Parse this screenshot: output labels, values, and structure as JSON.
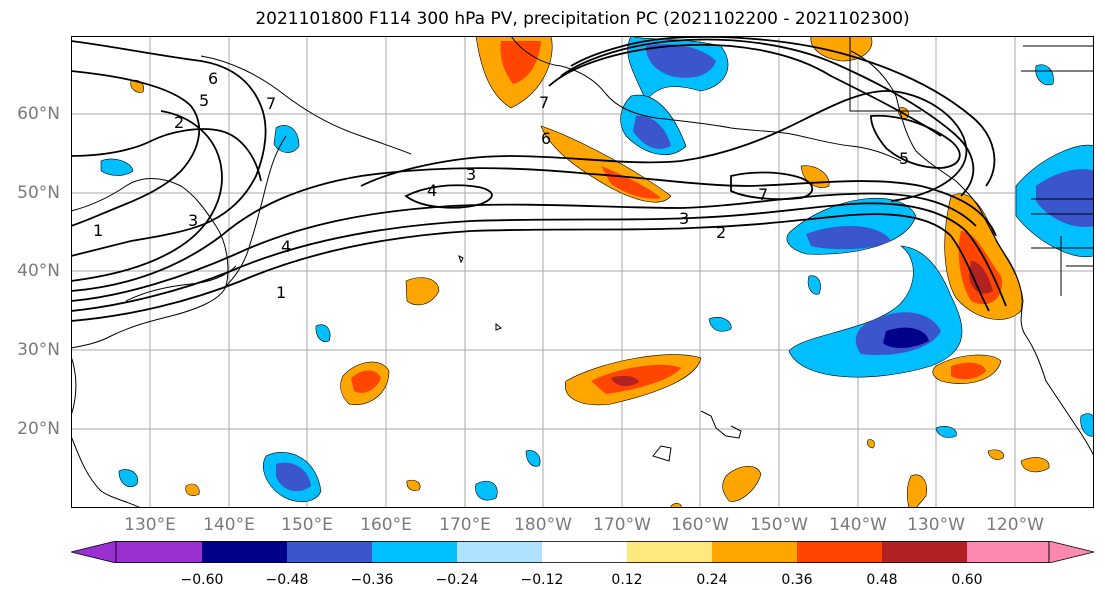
{
  "title": "2021101800 F114 300 hPa PV, precipitation PC (2021102200 - 2021102300)",
  "latitude_labels": [
    "60°N",
    "50°N",
    "40°N",
    "30°N",
    "20°N"
  ],
  "longitude_labels": [
    "130°E",
    "140°E",
    "150°E",
    "160°E",
    "170°E",
    "180°W",
    "170°W",
    "160°W",
    "150°W",
    "140°W",
    "130°W",
    "120°W"
  ],
  "pv_contour_labels": [
    "1",
    "2",
    "3",
    "4",
    "5",
    "6",
    "7"
  ],
  "colorbar": {
    "ticks": [
      "−0.60",
      "−0.48",
      "−0.36",
      "−0.24",
      "−0.12",
      "0.12",
      "0.24",
      "0.36",
      "0.48",
      "0.60"
    ],
    "colors": [
      "#9b30d0",
      "#00008b",
      "#3b55cc",
      "#00bfff",
      "#b0e2ff",
      "#ffffff",
      "#ffe97f",
      "#ffa500",
      "#ff4500",
      "#b22222",
      "#ff88b0"
    ]
  }
}
